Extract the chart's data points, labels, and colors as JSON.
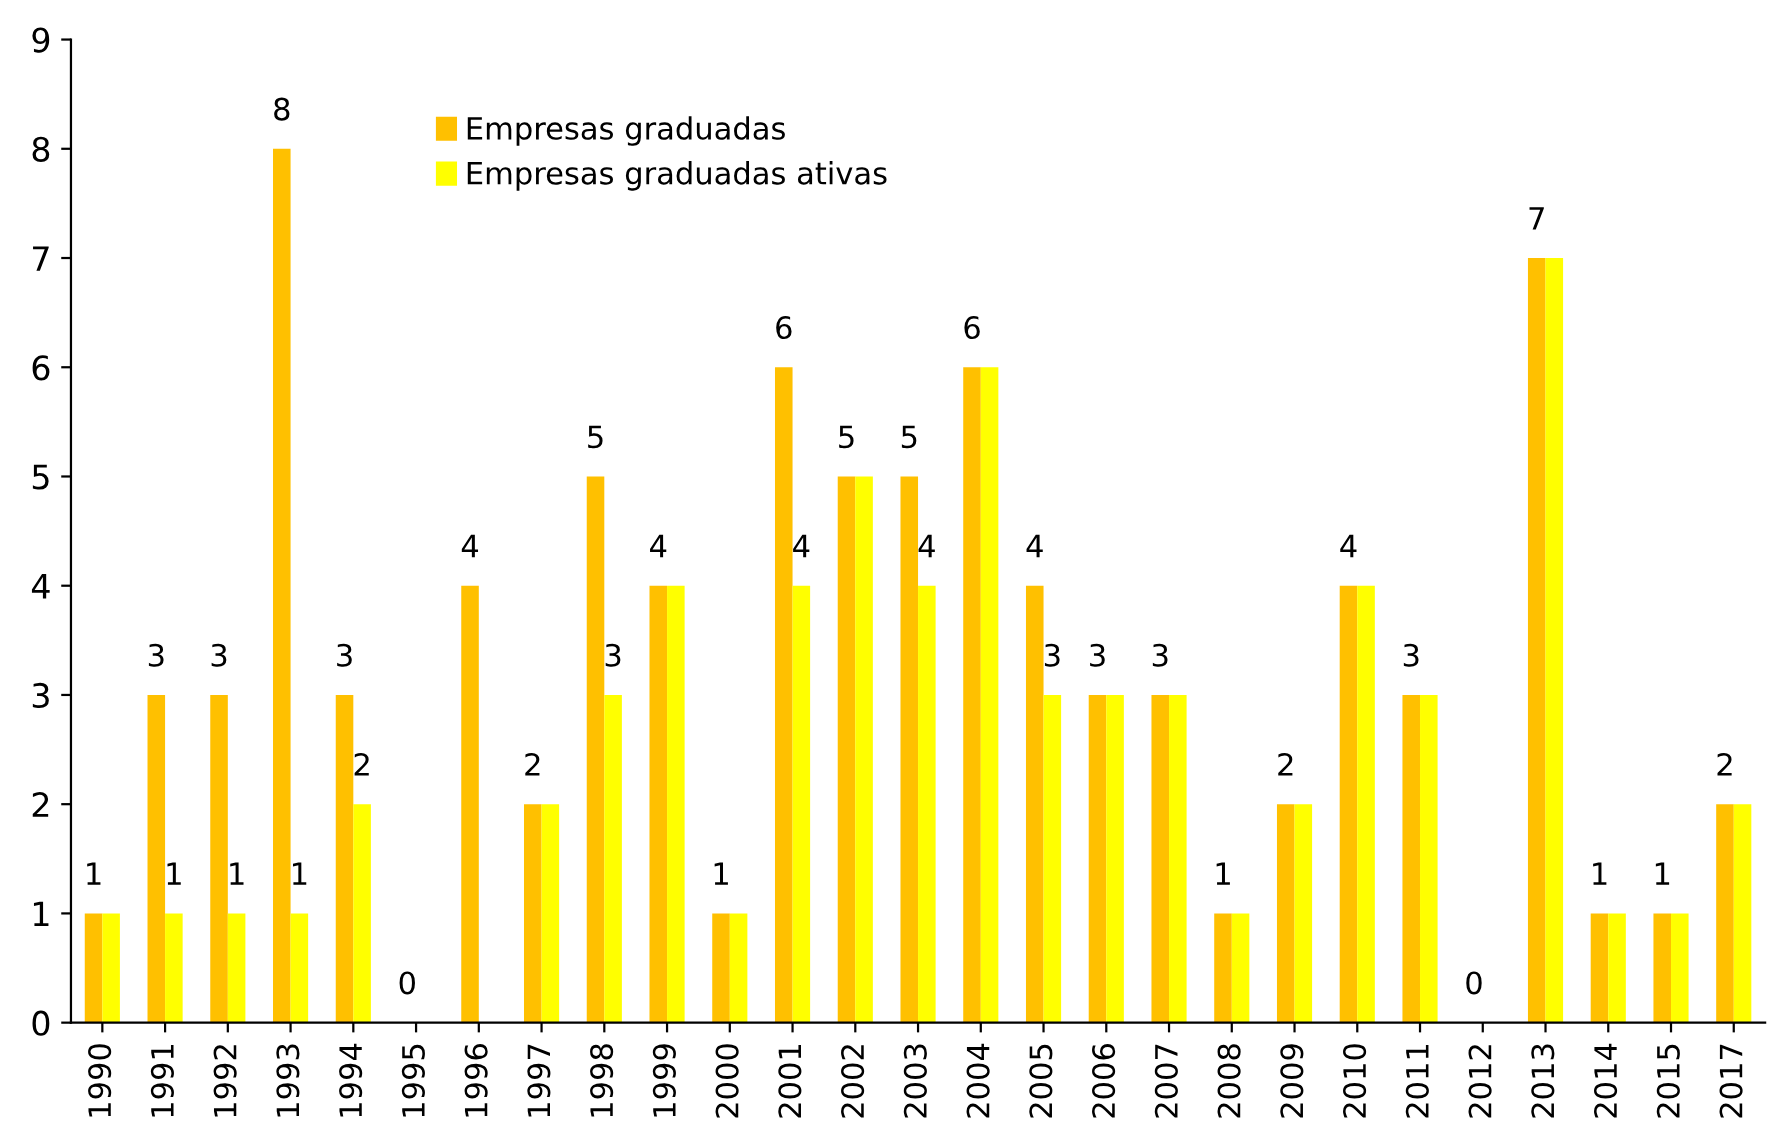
{
  "chart_data": {
    "type": "bar",
    "categories": [
      "1990",
      "1991",
      "1992",
      "1993",
      "1994",
      "1995",
      "1996",
      "1997",
      "1998",
      "1999",
      "2000",
      "2001",
      "2002",
      "2003",
      "2004",
      "2005",
      "2006",
      "2007",
      "2008",
      "2009",
      "2010",
      "2011",
      "2012",
      "2013",
      "2014",
      "2015",
      "2017"
    ],
    "series": [
      {
        "name": "Empresas graduadas",
        "color": "#ffc000",
        "values": [
          1,
          3,
          3,
          8,
          3,
          0,
          4,
          2,
          5,
          4,
          1,
          6,
          5,
          5,
          6,
          4,
          3,
          3,
          1,
          2,
          4,
          3,
          0,
          7,
          1,
          1,
          2
        ],
        "value_labels": [
          "1",
          "3",
          "3",
          "8",
          "3",
          "0",
          "4",
          "2",
          "5",
          "4",
          "1",
          "6",
          "5",
          "5",
          "6",
          "4",
          "3",
          "3",
          "1",
          "2",
          "4",
          "3",
          "0",
          "7",
          "1",
          "1",
          "2"
        ]
      },
      {
        "name": "Empresas graduadas ativas",
        "color": "#ffff00",
        "values": [
          1,
          1,
          1,
          1,
          2,
          0,
          0,
          2,
          3,
          4,
          1,
          4,
          5,
          4,
          6,
          3,
          3,
          3,
          1,
          2,
          4,
          3,
          0,
          7,
          1,
          1,
          2
        ],
        "value_labels": [
          null,
          "1",
          "1",
          "1",
          "2",
          null,
          null,
          null,
          "3",
          null,
          null,
          "4",
          null,
          "4",
          null,
          "3",
          null,
          null,
          null,
          null,
          null,
          null,
          null,
          null,
          null,
          null,
          null
        ]
      }
    ],
    "ylim": [
      0,
      9
    ],
    "yticks": [
      0,
      1,
      2,
      3,
      4,
      5,
      6,
      7,
      8,
      9
    ],
    "grid": false,
    "legend": "top left"
  }
}
